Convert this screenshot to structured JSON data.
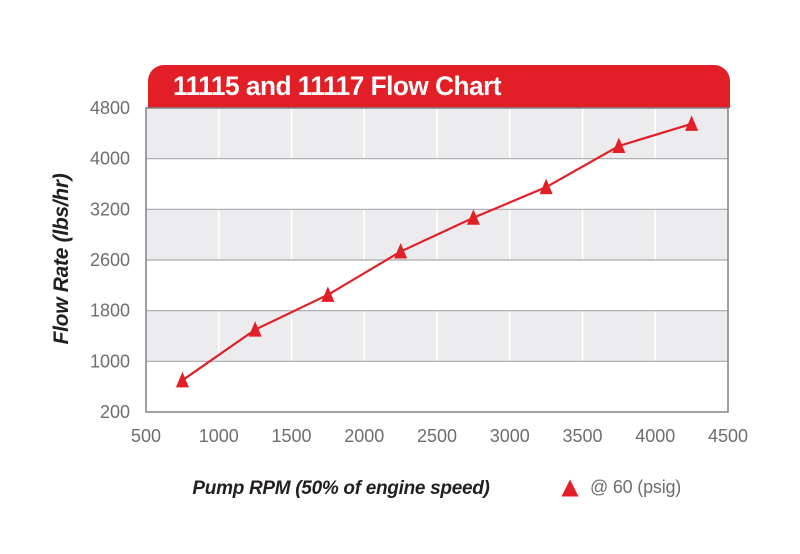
{
  "chart_data": {
    "type": "line",
    "title": "11115 and 11117 Flow Chart",
    "xlabel": "Pump RPM (50% of engine speed)",
    "ylabel": "Flow Rate (lbs/hr)",
    "x_ticks": [
      500,
      1000,
      1500,
      2000,
      2500,
      3000,
      3500,
      4000,
      4500
    ],
    "y_ticks": [
      200,
      1000,
      1800,
      2600,
      3200,
      4000,
      4800
    ],
    "xlim": [
      500,
      4500
    ],
    "y_scale": "even-tick-spacing",
    "grid": {
      "horizontal": true,
      "vertical": true,
      "band_fill": "alternating-gray-white"
    },
    "series": [
      {
        "name": "@ 60 (psig)",
        "marker": "triangle-up",
        "x": [
          750,
          1250,
          1750,
          2250,
          2750,
          3250,
          3750,
          4250
        ],
        "y": [
          700,
          1500,
          2050,
          2700,
          3100,
          3550,
          4200,
          4550
        ]
      }
    ],
    "legend": {
      "position": "bottom-right",
      "label": "@ 60 (psig)"
    }
  },
  "colors": {
    "accent_red": "#e21e26",
    "band_gray": "#ececee",
    "gridline_gray": "#a7a9ac",
    "vertical_gridline": "#ffffff",
    "plot_border": "#808285",
    "tick_text": "#6d6e71",
    "axis_title_text": "#231f20",
    "banner_text": "#ffffff"
  }
}
